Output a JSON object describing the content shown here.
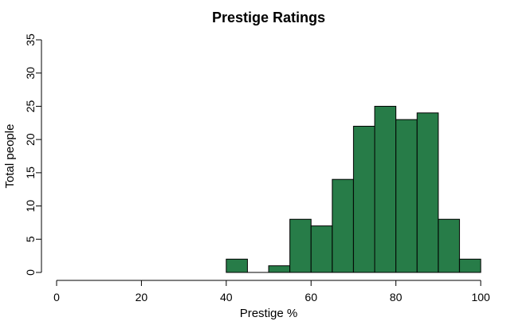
{
  "chart_data": {
    "type": "bar",
    "title": "Prestige Ratings",
    "xlabel": "Prestige %",
    "ylabel": "Total people",
    "xlim": [
      0,
      100
    ],
    "ylim": [
      0,
      35
    ],
    "x_ticks": [
      "0",
      "20",
      "40",
      "60",
      "80",
      "100"
    ],
    "y_ticks": [
      "0",
      "5",
      "10",
      "15",
      "20",
      "25",
      "30",
      "35"
    ],
    "bin_width": 5,
    "bins": [
      {
        "start": 40,
        "end": 45,
        "count": 2
      },
      {
        "start": 45,
        "end": 50,
        "count": 0
      },
      {
        "start": 50,
        "end": 55,
        "count": 1
      },
      {
        "start": 55,
        "end": 60,
        "count": 8
      },
      {
        "start": 60,
        "end": 65,
        "count": 7
      },
      {
        "start": 65,
        "end": 70,
        "count": 14
      },
      {
        "start": 70,
        "end": 75,
        "count": 22
      },
      {
        "start": 75,
        "end": 80,
        "count": 25
      },
      {
        "start": 80,
        "end": 85,
        "count": 23
      },
      {
        "start": 85,
        "end": 90,
        "count": 24
      },
      {
        "start": 90,
        "end": 95,
        "count": 8
      },
      {
        "start": 95,
        "end": 100,
        "count": 2
      }
    ],
    "bar_color": "#277C48",
    "grid": false,
    "legend": "none"
  }
}
